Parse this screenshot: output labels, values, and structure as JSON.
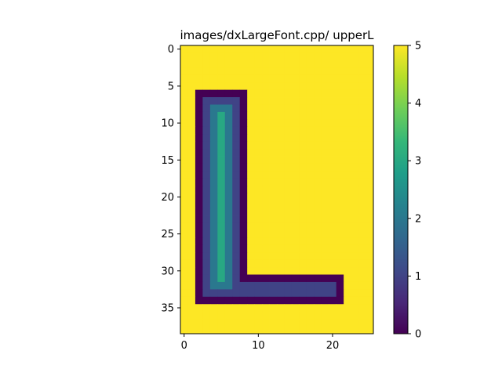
{
  "chart_data": {
    "type": "heatmap",
    "title": "images/dxLargeFont.cpp/ upperL",
    "colormap": "viridis",
    "rows": 39,
    "cols": 26,
    "vmin": 0,
    "vmax": 5,
    "background_value": 5,
    "xlim": [
      -0.5,
      25.5
    ],
    "ylim": [
      38.5,
      -0.5
    ],
    "x_ticks": [
      0,
      10,
      20
    ],
    "y_ticks": [
      0,
      5,
      10,
      15,
      20,
      25,
      30,
      35
    ],
    "colorbar_ticks": [
      0,
      1,
      2,
      3,
      4,
      5
    ],
    "regions": [
      {
        "value": 0,
        "rows": [
          6,
          34
        ],
        "cols": [
          2,
          8
        ]
      },
      {
        "value": 0,
        "rows": [
          31,
          34
        ],
        "cols": [
          2,
          21
        ]
      },
      {
        "value": 1,
        "rows": [
          7,
          33
        ],
        "cols": [
          3,
          7
        ]
      },
      {
        "value": 1,
        "rows": [
          32,
          33
        ],
        "cols": [
          3,
          20
        ]
      },
      {
        "value": 2,
        "rows": [
          8,
          32
        ],
        "cols": [
          4,
          6
        ]
      },
      {
        "value": 3,
        "rows": [
          9,
          31
        ],
        "cols": [
          5,
          5
        ]
      }
    ]
  }
}
